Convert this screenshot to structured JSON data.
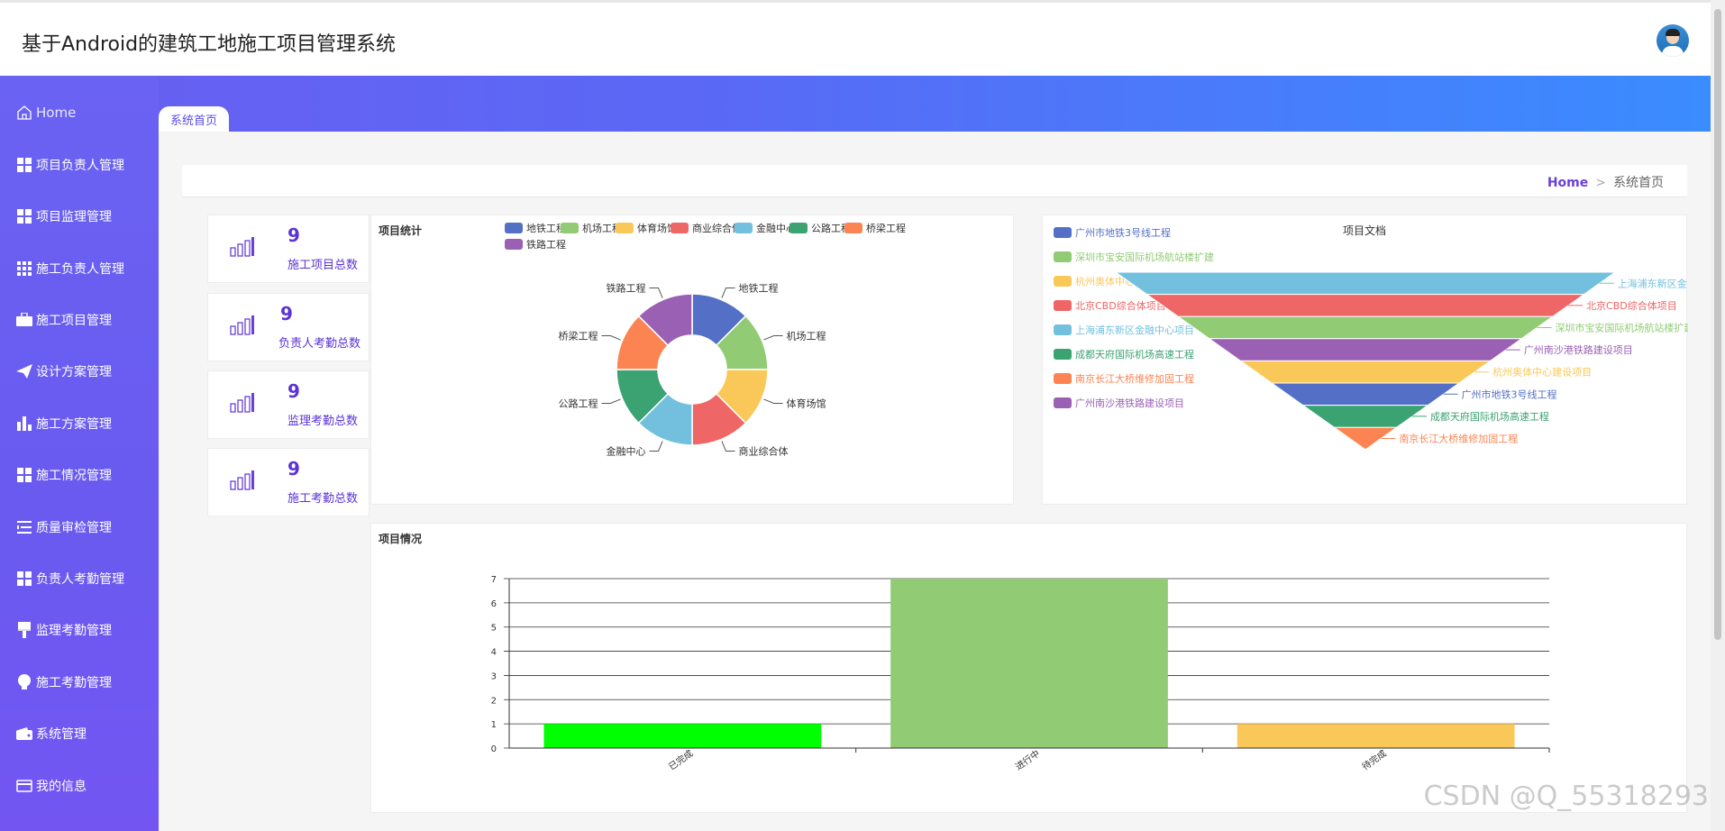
{
  "header": {
    "title": "基于Android的建筑工地施工项目管理系统",
    "avatar": "user-avatar"
  },
  "sidebar": {
    "items": [
      {
        "label": "Home",
        "icon": "home-icon"
      },
      {
        "label": "项目负责人管理",
        "icon": "grid-icon"
      },
      {
        "label": "项目监理管理",
        "icon": "grid-icon"
      },
      {
        "label": "施工负责人管理",
        "icon": "apps-icon"
      },
      {
        "label": "施工项目管理",
        "icon": "briefcase-icon"
      },
      {
        "label": "设计方案管理",
        "icon": "paper-plane-icon"
      },
      {
        "label": "施工方案管理",
        "icon": "bar-chart-icon"
      },
      {
        "label": "施工情况管理",
        "icon": "grid-icon"
      },
      {
        "label": "质量审检管理",
        "icon": "list-icon"
      },
      {
        "label": "负责人考勤管理",
        "icon": "grid-icon"
      },
      {
        "label": "监理考勤管理",
        "icon": "brush-icon"
      },
      {
        "label": "施工考勤管理",
        "icon": "bulb-icon"
      },
      {
        "label": "系统管理",
        "icon": "wallet-icon"
      },
      {
        "label": "我的信息",
        "icon": "card-icon"
      }
    ]
  },
  "tab": {
    "label": "系统首页"
  },
  "breadcrumb": {
    "home": "Home",
    "separator": ">",
    "current": "系统首页"
  },
  "stats": [
    {
      "value": "9",
      "label": "施工项目总数"
    },
    {
      "value": "9",
      "label": "负责人考勤总数"
    },
    {
      "value": "9",
      "label": "监理考勤总数"
    },
    {
      "value": "9",
      "label": "施工考勤总数"
    }
  ],
  "colors": {
    "accent": "#5b33d6",
    "sidebar": "#6a5af0",
    "band_end": "#3a8cff"
  },
  "watermark": "CSDN @Q_55318293",
  "chart_data": [
    {
      "type": "pie",
      "title": "项目统计",
      "categories": [
        "地铁工程",
        "机场工程",
        "体育场馆",
        "商业综合体",
        "金融中心",
        "公路工程",
        "桥梁工程",
        "铁路工程"
      ],
      "values": [
        1,
        1,
        1,
        1,
        1,
        1,
        1,
        1
      ],
      "colors": [
        "#5470c6",
        "#91cc75",
        "#fac858",
        "#ee6666",
        "#73c0de",
        "#3ba272",
        "#fc8452",
        "#9a60b4"
      ],
      "donut": true,
      "legend": "top-right"
    },
    {
      "type": "funnel",
      "title": "项目文档",
      "legend": "left",
      "categories": [
        "广州市地铁3号线工程",
        "深圳市宝安国际机场航站楼扩建",
        "杭州奥体中心建设项目",
        "北京CBD综合体项目",
        "上海浦东新区金融中心项目",
        "成都天府国际机场高速工程",
        "南京长江大桥维修加固工程",
        "广州南沙港铁路建设项目"
      ],
      "funnel_order": [
        "上海浦东新区金融中心项目",
        "北京CBD综合体项目",
        "深圳市宝安国际机场航站楼扩建",
        "广州南沙港铁路建设项目",
        "杭州奥体中心建设项目",
        "广州市地铁3号线工程",
        "成都天府国际机场高速工程",
        "南京长江大桥维修加固工程"
      ],
      "funnel_labels": [
        "上海浦东新区金",
        "北京CBD综合体项目",
        "深圳市宝安国际机场航站楼扩建",
        "广州南沙港铁路建设项目",
        "杭州奥体中心建设项目",
        "广州市地铁3号线工程",
        "成都天府国际机场高速工程",
        "南京长江大桥维修加固工程"
      ],
      "colors": [
        "#5470c6",
        "#91cc75",
        "#fac858",
        "#ee6666",
        "#73c0de",
        "#3ba272",
        "#fc8452",
        "#9a60b4"
      ]
    },
    {
      "type": "bar",
      "title": "项目情况",
      "categories": [
        "已完成",
        "进行中",
        "待完成"
      ],
      "values": [
        1,
        7,
        1
      ],
      "colors": [
        "#00ff00",
        "#91cc75",
        "#fac858"
      ],
      "ylim": [
        0,
        7
      ],
      "yticks": [
        "0",
        "1",
        "2",
        "3",
        "4",
        "5",
        "6",
        "7"
      ],
      "grid": true
    }
  ]
}
